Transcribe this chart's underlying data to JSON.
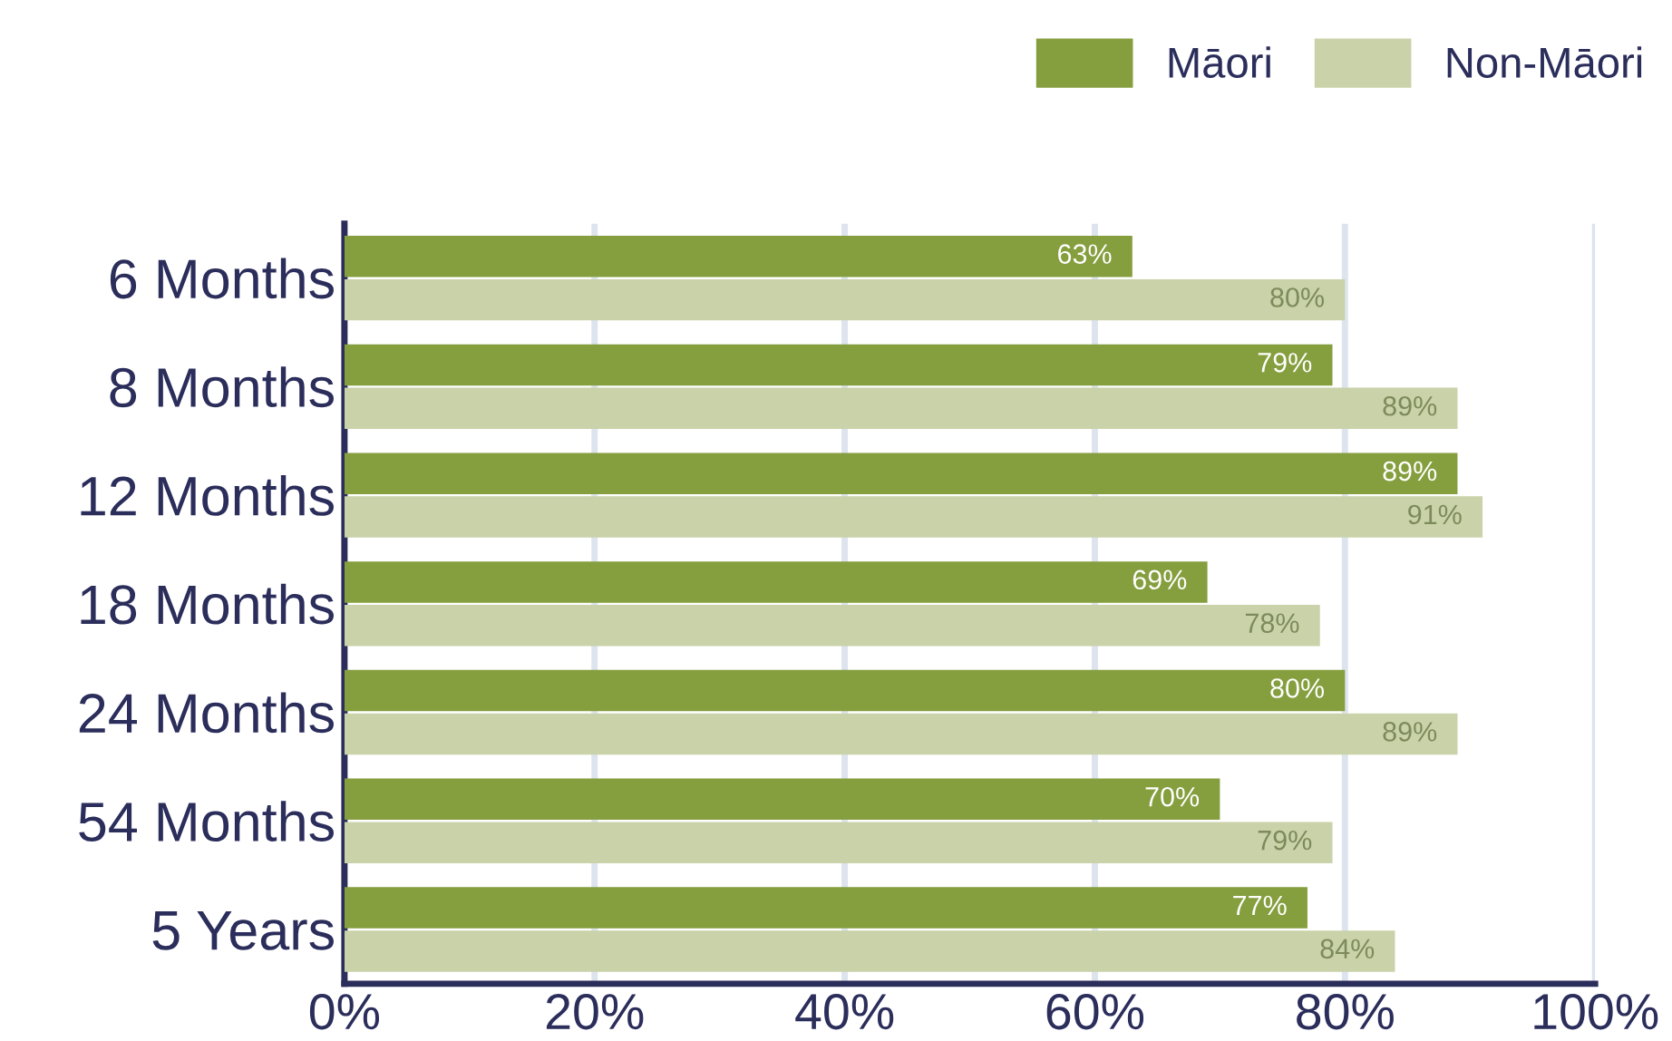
{
  "chart_data": {
    "type": "bar",
    "orientation": "horizontal",
    "categories": [
      "6 Months",
      "8 Months",
      "12 Months",
      "18 Months",
      "24 Months",
      "54 Months",
      "5 Years"
    ],
    "series": [
      {
        "name": "Māori",
        "color": "#859e3e",
        "values": [
          63,
          79,
          89,
          69,
          80,
          70,
          77
        ],
        "value_labels": [
          "63%",
          "79%",
          "89%",
          "69%",
          "80%",
          "70%",
          "77%"
        ]
      },
      {
        "name": "Non-Māori",
        "color": "#c9d2a8",
        "values": [
          80,
          89,
          91,
          78,
          89,
          79,
          84
        ],
        "value_labels": [
          "80%",
          "89%",
          "91%",
          "78%",
          "89%",
          "79%",
          "84%"
        ]
      }
    ],
    "xlim": [
      0,
      100
    ],
    "xticks": [
      {
        "value": 0,
        "label": "0%"
      },
      {
        "value": 20,
        "label": "20%"
      },
      {
        "value": 40,
        "label": "40%"
      },
      {
        "value": 60,
        "label": "60%"
      },
      {
        "value": 80,
        "label": "80%"
      },
      {
        "value": 100,
        "label": "100%"
      }
    ],
    "grid": "x",
    "legend": "top right"
  }
}
